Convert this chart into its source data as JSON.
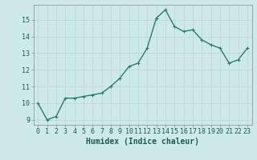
{
  "x": [
    0,
    1,
    2,
    3,
    4,
    5,
    6,
    7,
    8,
    9,
    10,
    11,
    12,
    13,
    14,
    15,
    16,
    17,
    18,
    19,
    20,
    21,
    22,
    23
  ],
  "y": [
    10.0,
    9.0,
    9.2,
    10.3,
    10.3,
    10.4,
    10.5,
    10.6,
    11.0,
    11.5,
    12.2,
    12.4,
    13.3,
    15.1,
    15.6,
    14.6,
    14.3,
    14.4,
    13.8,
    13.5,
    13.3,
    12.4,
    12.6,
    13.3
  ],
  "line_color": "#2d7a6e",
  "marker": "+",
  "bg_color": "#ceeae8",
  "grid_color": "#b8d8d5",
  "xlabel": "Humidex (Indice chaleur)",
  "ylim_min": 8.7,
  "ylim_max": 15.9,
  "xlim_min": -0.5,
  "xlim_max": 23.5,
  "yticks": [
    9,
    10,
    11,
    12,
    13,
    14,
    15
  ],
  "xticks": [
    0,
    1,
    2,
    3,
    4,
    5,
    6,
    7,
    8,
    9,
    10,
    11,
    12,
    13,
    14,
    15,
    16,
    17,
    18,
    19,
    20,
    21,
    22,
    23
  ],
  "xlabel_fontsize": 7,
  "tick_fontsize": 6,
  "linewidth": 1.0,
  "markersize": 3,
  "label_color": "#1a5c52"
}
